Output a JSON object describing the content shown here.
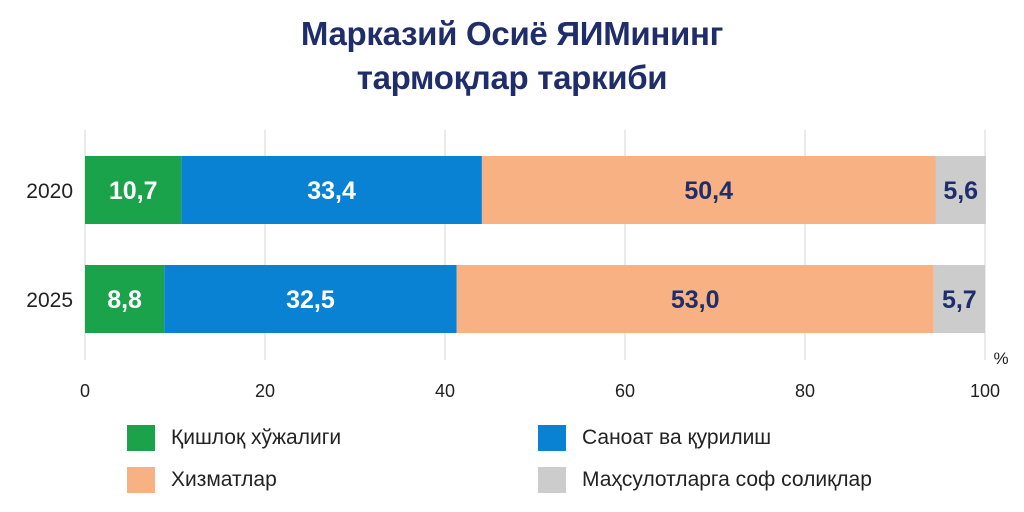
{
  "chart_data": {
    "type": "bar",
    "orientation": "horizontal",
    "stacked": true,
    "title": [
      "Марказий Осиё ЯИМининг",
      "тармоқлар таркиби"
    ],
    "categories": [
      "2020",
      "2025"
    ],
    "series": [
      {
        "name": "Қишлоқ хўжалиги",
        "values": [
          10.7,
          8.8
        ],
        "labels": [
          "10,7",
          "8,8"
        ],
        "color": "#1aa34a",
        "label_color": "#ffffff"
      },
      {
        "name": "Саноат ва қурилиш",
        "values": [
          33.4,
          32.5
        ],
        "labels": [
          "33,4",
          "32,5"
        ],
        "color": "#0a82d4",
        "label_color": "#ffffff"
      },
      {
        "name": "Хизматлар",
        "values": [
          50.4,
          53.0
        ],
        "labels": [
          "50,4",
          "53,0"
        ],
        "color": "#f7b183",
        "label_color": "#1f2d6b"
      },
      {
        "name": "Маҳсулотларга соф солиқлар",
        "values": [
          5.6,
          5.7
        ],
        "labels": [
          "5,6",
          "5,7"
        ],
        "color": "#cccccc",
        "label_color": "#1f2d6b"
      }
    ],
    "xlim": [
      0,
      100
    ],
    "xticks": [
      0,
      20,
      40,
      60,
      80,
      100
    ],
    "xunit": "%",
    "grid": true,
    "legend_position": "bottom"
  }
}
